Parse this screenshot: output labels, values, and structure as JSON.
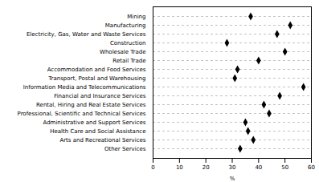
{
  "chart_data": {
    "type": "dot",
    "orientation": "horizontal",
    "categories": [
      "Mining",
      "Manufacturing",
      "Electricity, Gas, Water and Waste Services",
      "Construction",
      "Wholesale Trade",
      "Retail Trade",
      "Accommodation and Food Services",
      "Transport, Postal and Warehousing",
      "Information Media and Telecommunications",
      "Financial and Insurance Services",
      "Rental, Hiring and Real Estate Services",
      "Professional, Scientific and Technical Services",
      "Administrative and Support Services",
      "Health Care and Social Assistance",
      "Arts and Recreational Services",
      "Other Services"
    ],
    "values": [
      37,
      52,
      47,
      28,
      50,
      40,
      32,
      31,
      57,
      48,
      42,
      44,
      35,
      36,
      38,
      33
    ],
    "xlabel": "%",
    "xlim": [
      0,
      60
    ],
    "xticks": [
      0,
      10,
      20,
      30,
      40,
      50,
      60
    ],
    "color": "#000000",
    "marker": "diamond",
    "grid": true
  }
}
